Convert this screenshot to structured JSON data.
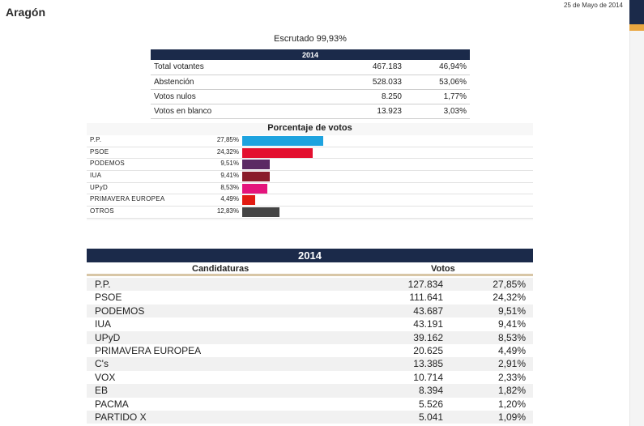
{
  "page": {
    "region": "Aragón",
    "date": "25 de Mayo de 2014",
    "escrutado_label": "Escrutado",
    "escrutado_value": "99,93%"
  },
  "summary": {
    "year": "2014",
    "rows": [
      {
        "label": "Total votantes",
        "value": "467.183",
        "pct": "46,94%"
      },
      {
        "label": "Abstención",
        "value": "528.033",
        "pct": "53,06%"
      },
      {
        "label": "Votos nulos",
        "value": "8.250",
        "pct": "1,77%"
      },
      {
        "label": "Votos en blanco",
        "value": "13.923",
        "pct": "3,03%"
      }
    ]
  },
  "percentage_chart": {
    "title": "Porcentaje de votos",
    "colors": {
      "pp": "#1ea3df",
      "psoe": "#e3102f",
      "podemos": "#5b2a64",
      "iua": "#8a1c2a",
      "upyd": "#e4147c",
      "primavera": "#e21b12",
      "otros": "#444444"
    },
    "rows": [
      {
        "name": "P.P.",
        "pct": "27,85%",
        "value": 27.85,
        "color_key": "pp"
      },
      {
        "name": "PSOE",
        "pct": "24,32%",
        "value": 24.32,
        "color_key": "psoe"
      },
      {
        "name": "PODEMOS",
        "pct": "9,51%",
        "value": 9.51,
        "color_key": "podemos"
      },
      {
        "name": "IUA",
        "pct": "9,41%",
        "value": 9.41,
        "color_key": "iua"
      },
      {
        "name": "UPyD",
        "pct": "8,53%",
        "value": 8.53,
        "color_key": "upyd"
      },
      {
        "name": "PRIMAVERA EUROPEA",
        "pct": "4,49%",
        "value": 4.49,
        "color_key": "primavera"
      },
      {
        "name": "OTROS",
        "pct": "12,83%",
        "value": 12.83,
        "color_key": "otros"
      }
    ]
  },
  "results": {
    "year": "2014",
    "col_candidaturas": "Candidaturas",
    "col_votos": "Votos",
    "rows": [
      {
        "name": "P.P.",
        "votes": "127.834",
        "pct": "27,85%"
      },
      {
        "name": "PSOE",
        "votes": "111.641",
        "pct": "24,32%"
      },
      {
        "name": "PODEMOS",
        "votes": "43.687",
        "pct": "9,51%"
      },
      {
        "name": "IUA",
        "votes": "43.191",
        "pct": "9,41%"
      },
      {
        "name": "UPyD",
        "votes": "39.162",
        "pct": "8,53%"
      },
      {
        "name": "PRIMAVERA EUROPEA",
        "votes": "20.625",
        "pct": "4,49%"
      },
      {
        "name": "C's",
        "votes": "13.385",
        "pct": "2,91%"
      },
      {
        "name": "VOX",
        "votes": "10.714",
        "pct": "2,33%"
      },
      {
        "name": "EB",
        "votes": "8.394",
        "pct": "1,82%"
      },
      {
        "name": "PACMA",
        "votes": "5.526",
        "pct": "1,20%"
      },
      {
        "name": "PARTIDO X",
        "votes": "5.041",
        "pct": "1,09%"
      }
    ]
  }
}
